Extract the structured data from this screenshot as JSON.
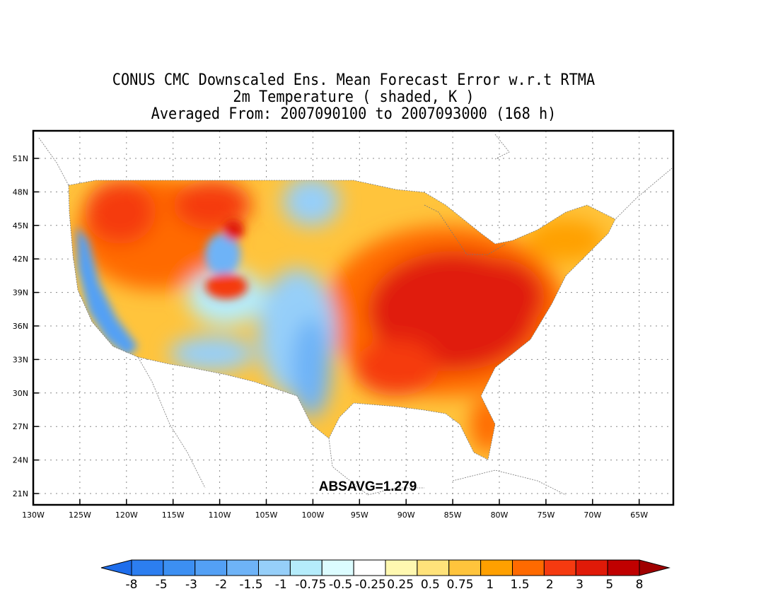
{
  "title": {
    "line1": "CONUS CMC Downscaled Ens. Mean Forecast Error w.r.t RTMA",
    "line2": "2m Temperature ( shaded, K )",
    "line3": "Averaged From: 2007090100 to 2007093000 (168 h)"
  },
  "map": {
    "annotation": "ABSAVG=1.279",
    "lat_ticks": [
      "51N",
      "48N",
      "45N",
      "42N",
      "39N",
      "36N",
      "33N",
      "30N",
      "27N",
      "24N",
      "21N"
    ],
    "lon_ticks": [
      "130W",
      "125W",
      "120W",
      "115W",
      "110W",
      "105W",
      "100W",
      "95W",
      "90W",
      "85W",
      "80W",
      "75W",
      "70W",
      "65W"
    ]
  },
  "colorbar": {
    "labels": [
      "-8",
      "-5",
      "-3",
      "-2",
      "-1.5",
      "-1",
      "-0.75",
      "-0.5",
      "-0.25",
      "0.25",
      "0.5",
      "0.75",
      "1",
      "1.5",
      "2",
      "3",
      "5",
      "8"
    ],
    "colors": [
      "#1e6deb",
      "#2c7ef0",
      "#3c8ff2",
      "#53a0f5",
      "#6eb3f7",
      "#96cff9",
      "#b5ecfb",
      "#dcfcff",
      "#ffffff",
      "#fff8b0",
      "#ffe27a",
      "#ffc43c",
      "#ffa000",
      "#ff6a00",
      "#f53a10",
      "#e01a08",
      "#c00000",
      "#a00000"
    ]
  },
  "palette": {
    "cool": "#3c8ff2",
    "warm": "#f53a10",
    "hot": "#e01a08"
  }
}
